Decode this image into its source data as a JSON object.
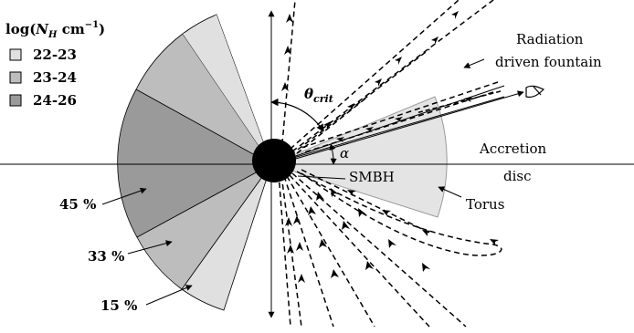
{
  "legend": {
    "title_prefix": "log(",
    "title_symbol": "N",
    "title_subscript": "H",
    "title_unit": " cm",
    "title_exponent": "−1",
    "title_suffix": ")",
    "items": [
      {
        "label": "22-23",
        "color": "#e0e0e0"
      },
      {
        "label": "23-24",
        "color": "#bdbdbd"
      },
      {
        "label": "24-26",
        "color": "#9a9a9a"
      }
    ]
  },
  "sector_percentages": [
    {
      "label": "45 %",
      "fill": "#9a9a9a"
    },
    {
      "label": "33 %",
      "fill": "#bdbdbd"
    },
    {
      "label": "15 %",
      "fill": "#e0e0e0"
    }
  ],
  "labels": {
    "radiation_line1": "Radiation",
    "radiation_line2": "driven fountain",
    "theta_symbol": "θ",
    "theta_sub": "crit",
    "alpha": "α",
    "accretion_line1": "Accretion",
    "accretion_line2": "disc",
    "smbh": "SMBH",
    "torus": "Torus"
  },
  "colors": {
    "torus_fill": "#e4e4e4",
    "smbh_fill": "#000000",
    "line": "#000000"
  }
}
